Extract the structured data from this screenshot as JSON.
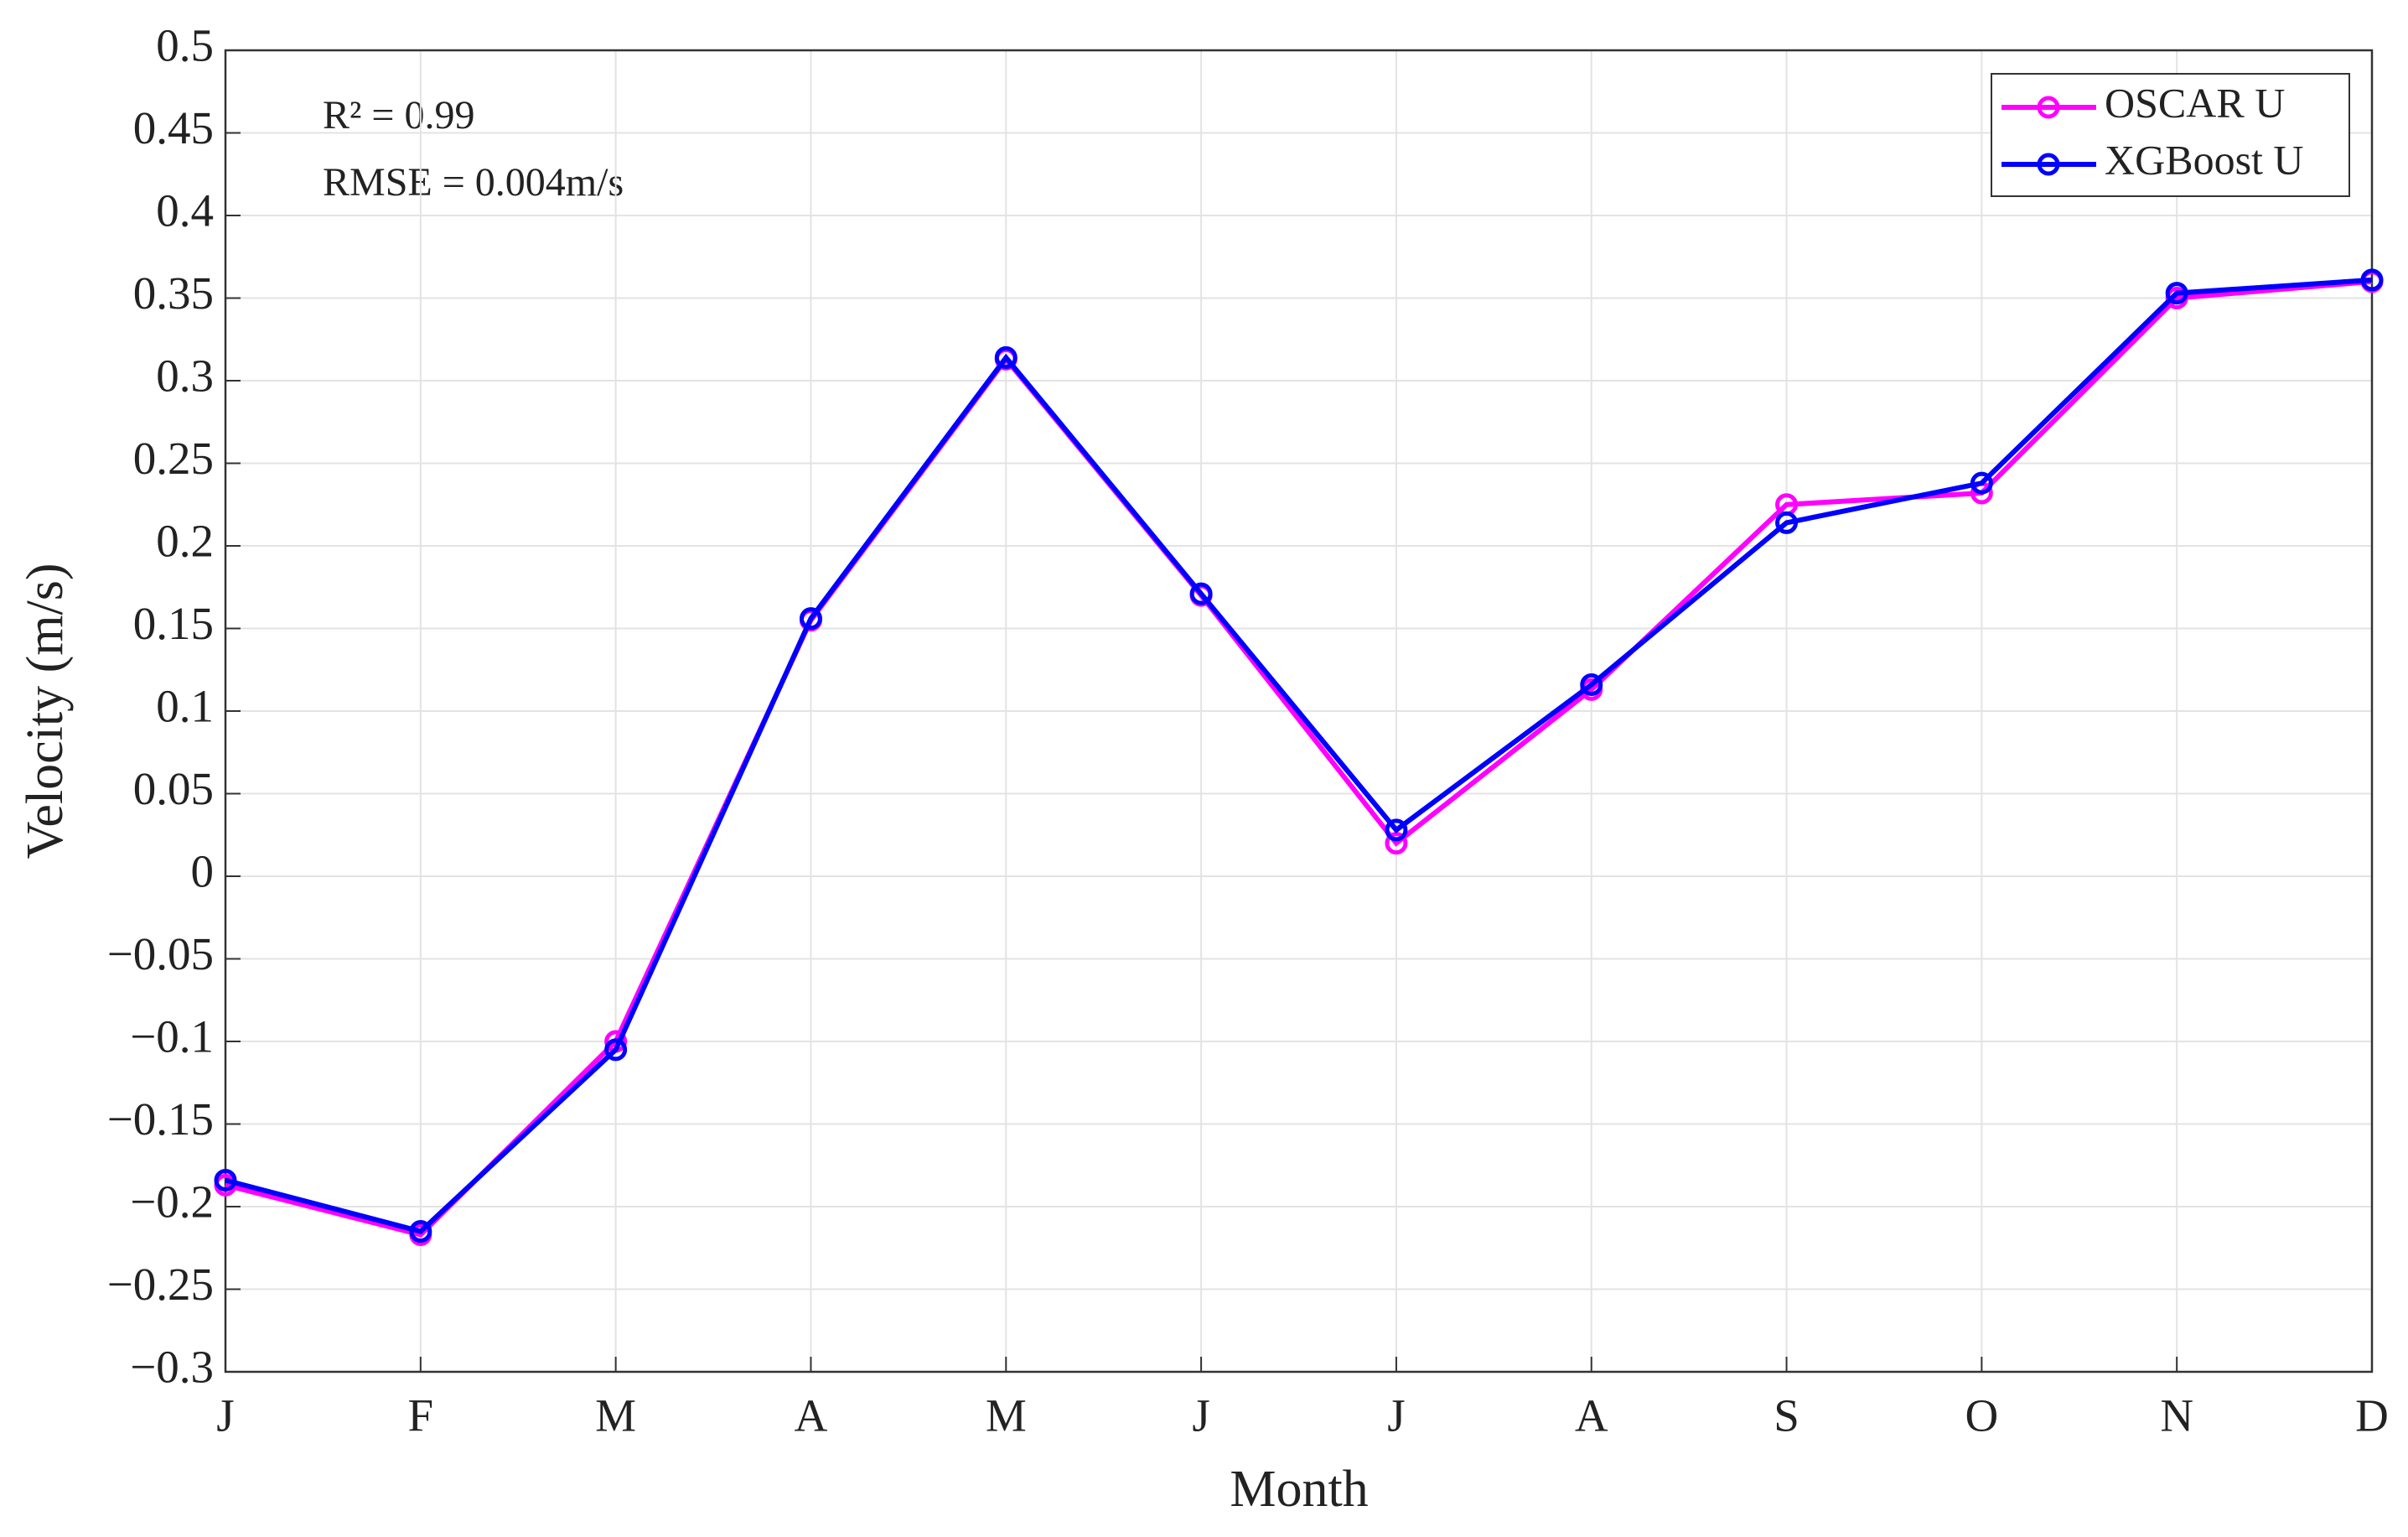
{
  "chart_data": {
    "type": "line",
    "x_label": "Month",
    "y_label": "Velocity (m/s)",
    "annotations": [
      "R² = 0.99",
      "RMSE = 0.004m/s"
    ],
    "categories": [
      "J",
      "F",
      "M",
      "A",
      "M",
      "J",
      "J",
      "A",
      "S",
      "O",
      "N",
      "D"
    ],
    "series": [
      {
        "name": "OSCAR U",
        "color": "#ff00ff",
        "values": [
          -0.187,
          -0.217,
          -0.1,
          0.155,
          0.313,
          0.17,
          0.02,
          0.113,
          0.225,
          0.232,
          0.35,
          0.36
        ]
      },
      {
        "name": "XGBoost U",
        "color": "#0000ff",
        "values": [
          -0.184,
          -0.215,
          -0.105,
          0.156,
          0.314,
          0.171,
          0.028,
          0.116,
          0.214,
          0.238,
          0.353,
          0.361
        ]
      }
    ],
    "ylim": [
      -0.3,
      0.5
    ],
    "yticks": [
      {
        "value": -0.3,
        "label": "−0.3"
      },
      {
        "value": -0.25,
        "label": "−0.25"
      },
      {
        "value": -0.2,
        "label": "−0.2"
      },
      {
        "value": -0.15,
        "label": "−0.15"
      },
      {
        "value": -0.1,
        "label": "−0.1"
      },
      {
        "value": -0.05,
        "label": "−0.05"
      },
      0,
      0.05,
      0.1,
      0.15,
      0.2,
      0.25,
      0.3,
      0.35,
      0.4,
      0.45,
      0.5
    ],
    "grid": true,
    "legend": "northeast"
  }
}
